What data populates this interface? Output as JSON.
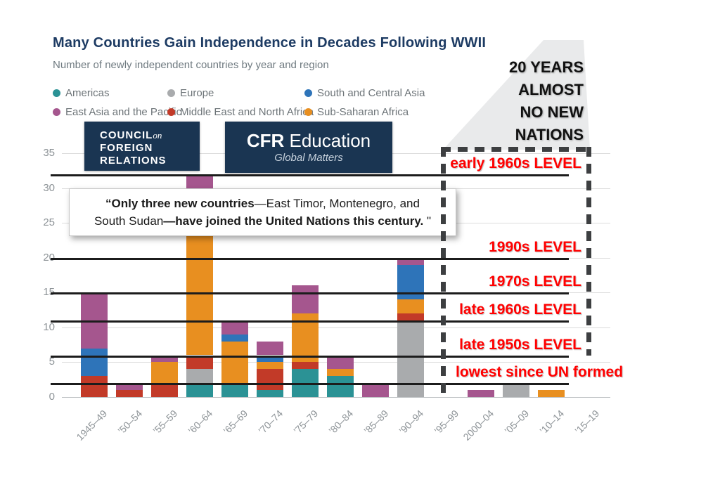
{
  "header": {
    "title": "Many Countries Gain Independence in Decades Following WWII",
    "subtitle": "Number of newly independent countries by year and region"
  },
  "colors": {
    "logo_navy": "#1a3552",
    "annotation_red": "#ff0000",
    "title_navy": "#1d3b63",
    "level_line_black": "#1c1c1c"
  },
  "legend": {
    "items": [
      {
        "label": "Americas",
        "color": "#2B9295"
      },
      {
        "label": "Europe",
        "color": "#A9ABAD"
      },
      {
        "label": "South and Central Asia",
        "color": "#2E74B9"
      },
      {
        "label": "East Asia and the Pacific",
        "color": "#A5568E"
      },
      {
        "label": "Middle East and North Africa",
        "color": "#C23A28"
      },
      {
        "label": "Sub-Saharan Africa",
        "color": "#E88F20"
      }
    ]
  },
  "logos": {
    "cfr": {
      "line1": "COUNCIL",
      "line1_on": "on",
      "line2": "FOREIGN",
      "line3": "RELATIONS"
    },
    "edu": {
      "brand_strong": "CFR",
      "brand_rest": " Education",
      "tagline": "Global Matters"
    }
  },
  "quote": {
    "lines": [
      [
        {
          "text": "“Only three new countries",
          "bold": true
        },
        {
          "text": "—East Timor, Montenegro, and",
          "bold": false
        }
      ],
      [
        {
          "text": "South Sudan",
          "bold": false
        },
        {
          "text": "—have joined the United Nations this century.",
          "bold": true
        },
        {
          "text": " \"",
          "bold": false
        }
      ]
    ]
  },
  "annotation": {
    "lines": [
      "20 YEARS",
      "ALMOST",
      "NO NEW",
      "NATIONS"
    ]
  },
  "chart_data": {
    "type": "bar",
    "stacked": true,
    "title": "Many Countries Gain Independence in Decades Following WWII",
    "xlabel": "",
    "ylabel": "Number of newly independent countries",
    "ylim": [
      0,
      35
    ],
    "y_ticks": [
      0,
      5,
      10,
      15,
      20,
      25,
      30,
      35
    ],
    "grid": true,
    "legend_position": "top",
    "categories": [
      "1945–49",
      "’50–54",
      "’55–59",
      "’60–64",
      "’65–69",
      "’70–74",
      "’75–79",
      "’80–84",
      "’85–89",
      "’90–94",
      "’95–99",
      "2000–04",
      "’05–09",
      "’10–14",
      "’15–19"
    ],
    "series": [
      {
        "name": "Americas",
        "color": "#2B9295",
        "values": [
          0,
          0,
          0,
          2,
          2,
          1,
          4,
          3,
          0,
          0,
          0,
          0,
          0,
          0,
          0
        ]
      },
      {
        "name": "Europe",
        "color": "#A9ABAD",
        "values": [
          0,
          0,
          0,
          2,
          0,
          0,
          0,
          0,
          0,
          11,
          0,
          0,
          2,
          0,
          0
        ]
      },
      {
        "name": "Middle East and North Africa",
        "color": "#C23A28",
        "values": [
          3,
          1,
          2,
          2,
          0,
          3,
          1,
          0,
          0,
          1,
          0,
          0,
          0,
          0,
          0
        ]
      },
      {
        "name": "Sub-Saharan Africa",
        "color": "#E88F20",
        "values": [
          0,
          0,
          3,
          24,
          6,
          1,
          7,
          1,
          0,
          2,
          0,
          0,
          0,
          1,
          0
        ]
      },
      {
        "name": "South and Central Asia",
        "color": "#2E74B9",
        "values": [
          4,
          0,
          0,
          0,
          1,
          1,
          0,
          0,
          0,
          5,
          0,
          0,
          0,
          0,
          0
        ]
      },
      {
        "name": "East Asia and the Pacific",
        "color": "#A5568E",
        "values": [
          8,
          1,
          1,
          2,
          2,
          2,
          4,
          2,
          2,
          1,
          0,
          1,
          0,
          0,
          0
        ]
      }
    ],
    "totals": [
      15,
      2,
      6,
      32,
      11,
      8,
      16,
      6,
      2,
      20,
      0,
      1,
      2,
      1,
      0
    ],
    "level_lines": [
      {
        "label": "early 1960s LEVEL",
        "value": 32
      },
      {
        "label": "1990s LEVEL",
        "value": 20
      },
      {
        "label": "1970s LEVEL",
        "value": 15
      },
      {
        "label": "late 1960s LEVEL",
        "value": 11
      },
      {
        "label": "late 1950s LEVEL",
        "value": 6
      },
      {
        "label": "lowest since UN formed",
        "value": 2
      }
    ]
  }
}
